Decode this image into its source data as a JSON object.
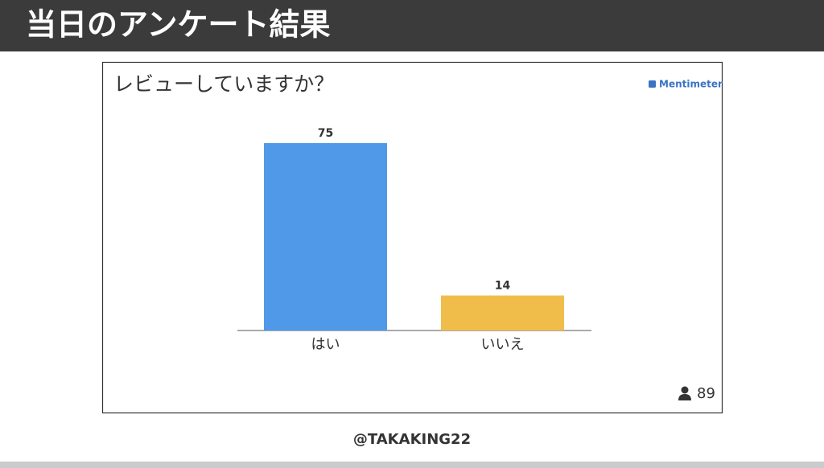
{
  "header": {
    "title": "当日のアンケート結果"
  },
  "chart_data": {
    "type": "bar",
    "title": "レビューしていますか？",
    "brand": "Mentimeter",
    "categories": [
      "はい",
      "いいえ"
    ],
    "values": [
      75,
      14
    ],
    "colors": [
      "#5099e8",
      "#f0bd4b"
    ],
    "respondents": 89
  },
  "footer": "@TAKAKING22"
}
